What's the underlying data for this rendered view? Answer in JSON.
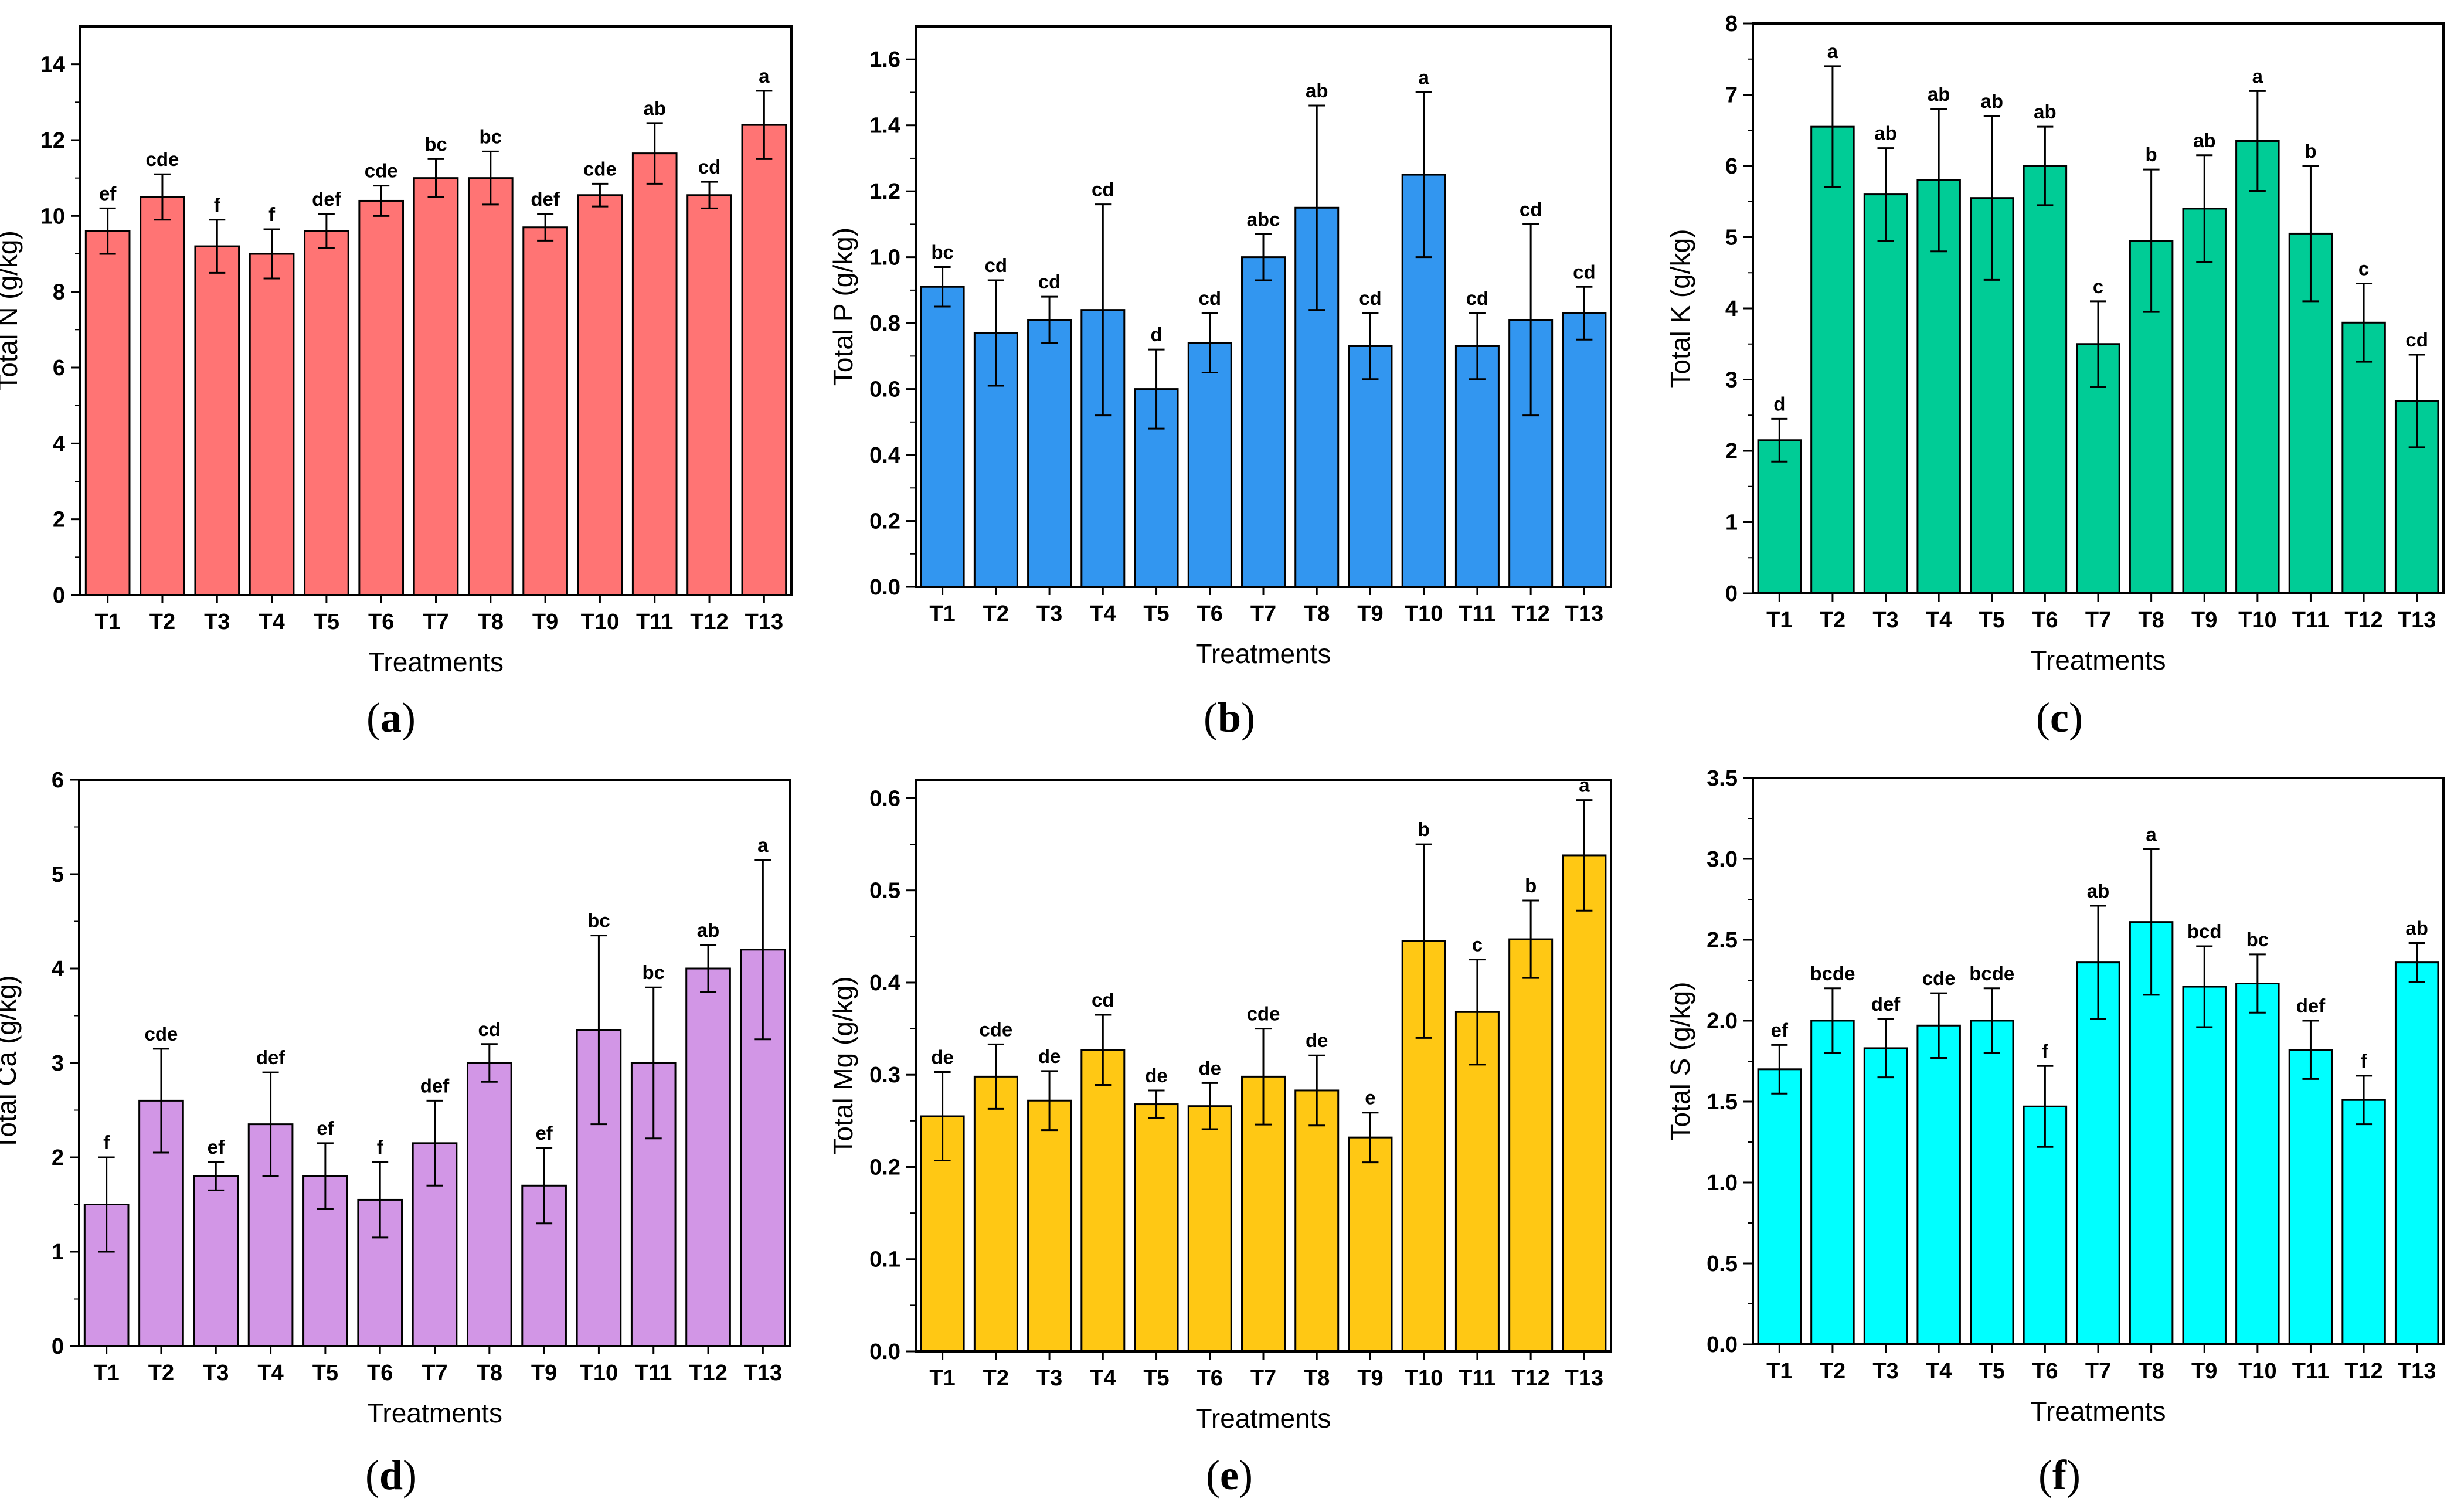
{
  "treatments": [
    "T1",
    "T2",
    "T3",
    "T4",
    "T5",
    "T6",
    "T7",
    "T8",
    "T9",
    "T10",
    "T11",
    "T12",
    "T13"
  ],
  "chart_data": [
    {
      "type": "bar",
      "panel": "a",
      "ylabel": "Total N (g/kg)",
      "xlabel": "Treatments",
      "ylim": [
        0,
        15
      ],
      "yticks": [
        "0",
        "2",
        "4",
        "6",
        "8",
        "10",
        "12",
        "14"
      ],
      "tick_values": [
        0,
        2,
        4,
        6,
        8,
        10,
        12,
        14
      ],
      "color": "#FF7474",
      "values": [
        9.6,
        10.5,
        9.2,
        9.0,
        9.6,
        10.4,
        11.0,
        11.0,
        9.7,
        10.55,
        11.65,
        10.55,
        12.4
      ],
      "errors": [
        0.6,
        0.6,
        0.7,
        0.65,
        0.45,
        0.4,
        0.5,
        0.7,
        0.35,
        0.3,
        0.8,
        0.35,
        0.9
      ],
      "letters": [
        "ef",
        "cde",
        "f",
        "f",
        "def",
        "cde",
        "bc",
        "bc",
        "def",
        "cde",
        "ab",
        "cd",
        "a"
      ]
    },
    {
      "type": "bar",
      "panel": "b",
      "ylabel": "Total P (g/kg)",
      "xlabel": "Treatments",
      "ylim": [
        0,
        1.7
      ],
      "yticks": [
        "0.0",
        "0.2",
        "0.4",
        "0.6",
        "0.8",
        "1.0",
        "1.2",
        "1.4",
        "1.6"
      ],
      "tick_values": [
        0,
        0.2,
        0.4,
        0.6,
        0.8,
        1.0,
        1.2,
        1.4,
        1.6
      ],
      "color": "#3296F0",
      "values": [
        0.91,
        0.77,
        0.81,
        0.84,
        0.6,
        0.74,
        1.0,
        1.15,
        0.73,
        1.25,
        0.73,
        0.81,
        0.83
      ],
      "errors": [
        0.06,
        0.16,
        0.07,
        0.32,
        0.12,
        0.09,
        0.07,
        0.31,
        0.1,
        0.25,
        0.1,
        0.29,
        0.08
      ],
      "letters": [
        "bc",
        "cd",
        "cd",
        "cd",
        "d",
        "cd",
        "abc",
        "ab",
        "cd",
        "a",
        "cd",
        "cd",
        "cd"
      ]
    },
    {
      "type": "bar",
      "panel": "c",
      "ylabel": "Total K (g/kg)",
      "xlabel": "Treatments",
      "ylim": [
        0,
        8
      ],
      "yticks": [
        "0",
        "1",
        "2",
        "3",
        "4",
        "5",
        "6",
        "7",
        "8"
      ],
      "tick_values": [
        0,
        1,
        2,
        3,
        4,
        5,
        6,
        7,
        8
      ],
      "color": "#00CC96",
      "values": [
        2.15,
        6.55,
        5.6,
        5.8,
        5.55,
        6.0,
        3.5,
        4.95,
        5.4,
        6.35,
        5.05,
        3.8,
        2.7
      ],
      "errors": [
        0.3,
        0.85,
        0.65,
        1.0,
        1.15,
        0.55,
        0.6,
        1.0,
        0.75,
        0.7,
        0.95,
        0.55,
        0.65
      ],
      "letters": [
        "d",
        "a",
        "ab",
        "ab",
        "ab",
        "ab",
        "c",
        "b",
        "ab",
        "a",
        "b",
        "c",
        "cd"
      ]
    },
    {
      "type": "bar",
      "panel": "d",
      "ylabel": "Total Ca (g/kg)",
      "xlabel": "Treatments",
      "ylim": [
        0,
        6
      ],
      "yticks": [
        "0",
        "1",
        "2",
        "3",
        "4",
        "5",
        "6"
      ],
      "tick_values": [
        0,
        1,
        2,
        3,
        4,
        5,
        6
      ],
      "color": "#D296E6",
      "values": [
        1.5,
        2.6,
        1.8,
        2.35,
        1.8,
        1.55,
        2.15,
        3.0,
        1.7,
        3.35,
        3.0,
        4.0,
        4.2
      ],
      "errors": [
        0.5,
        0.55,
        0.15,
        0.55,
        0.35,
        0.4,
        0.45,
        0.2,
        0.4,
        1.0,
        0.8,
        0.25,
        0.95
      ],
      "letters": [
        "f",
        "cde",
        "ef",
        "def",
        "ef",
        "f",
        "def",
        "cd",
        "ef",
        "bc",
        "bc",
        "ab",
        "a"
      ]
    },
    {
      "type": "bar",
      "panel": "e",
      "ylabel": "Total Mg (g/kg)",
      "xlabel": "Treatments",
      "ylim": [
        0,
        0.62
      ],
      "yticks": [
        "0.0",
        "0.1",
        "0.2",
        "0.3",
        "0.4",
        "0.5",
        "0.6"
      ],
      "tick_values": [
        0,
        0.1,
        0.2,
        0.3,
        0.4,
        0.5,
        0.6
      ],
      "color": "#FFC814",
      "values": [
        0.255,
        0.298,
        0.272,
        0.327,
        0.268,
        0.266,
        0.298,
        0.283,
        0.232,
        0.445,
        0.368,
        0.447,
        0.538
      ],
      "errors": [
        0.048,
        0.035,
        0.032,
        0.038,
        0.015,
        0.025,
        0.052,
        0.038,
        0.027,
        0.105,
        0.057,
        0.042,
        0.06
      ],
      "letters": [
        "de",
        "cde",
        "de",
        "cd",
        "de",
        "de",
        "cde",
        "de",
        "e",
        "b",
        "c",
        "b",
        "a"
      ]
    },
    {
      "type": "bar",
      "panel": "f",
      "ylabel": "Total S (g/kg)",
      "xlabel": "Treatments",
      "ylim": [
        0,
        3.5
      ],
      "yticks": [
        "0.0",
        "0.5",
        "1.0",
        "1.5",
        "2.0",
        "2.5",
        "3.0",
        "3.5"
      ],
      "tick_values": [
        0,
        0.5,
        1.0,
        1.5,
        2.0,
        2.5,
        3.0,
        3.5
      ],
      "color": "#00FFFF",
      "values": [
        1.7,
        2.0,
        1.83,
        1.97,
        2.0,
        1.47,
        2.36,
        2.61,
        2.21,
        2.23,
        1.82,
        1.51,
        2.36
      ],
      "errors": [
        0.15,
        0.2,
        0.18,
        0.2,
        0.2,
        0.25,
        0.35,
        0.45,
        0.25,
        0.18,
        0.18,
        0.15,
        0.12
      ],
      "letters": [
        "ef",
        "bcde",
        "def",
        "cde",
        "bcde",
        "f",
        "ab",
        "a",
        "bcd",
        "bc",
        "def",
        "f",
        "ab"
      ]
    }
  ]
}
